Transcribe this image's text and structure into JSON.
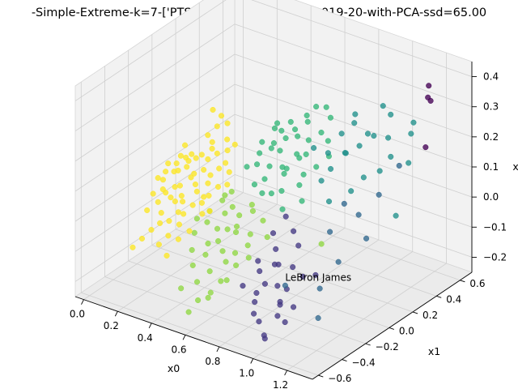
{
  "chart_data": {
    "type": "scatter",
    "title": "-Simple-Extreme-k=7-['PTS', 'AST', 'REB', 'BLK']-2019-20-with-PCA-ssd=65.00",
    "xlabel": "x0",
    "ylabel": "x1",
    "zlabel": "x2",
    "x_ticks": [
      "0.0",
      "0.2",
      "0.4",
      "0.6",
      "0.8",
      "1.0",
      "1.2"
    ],
    "y_ticks": [
      "−0.6",
      "−0.4",
      "−0.2",
      "0.0",
      "0.2",
      "0.4",
      "0.6"
    ],
    "z_ticks": [
      "−0.2",
      "−0.1",
      "0.0",
      "0.1",
      "0.2",
      "0.3",
      "0.4"
    ],
    "xlim": [
      -0.05,
      1.35
    ],
    "ylim": [
      -0.65,
      0.7
    ],
    "zlim": [
      -0.25,
      0.45
    ],
    "grid": true,
    "annotation": {
      "text": "LeBron James",
      "x": 1.05,
      "y": -0.45,
      "z": -0.05
    },
    "colors": {
      "c0": "#440154",
      "c1": "#443983",
      "c2": "#31688e",
      "c3": "#21918c",
      "c4": "#35b779",
      "c5": "#90d743",
      "c6": "#fde725"
    },
    "clusters": [
      {
        "color": "#440154",
        "points": [
          [
            1.2,
            0.55,
            0.38
          ],
          [
            1.23,
            0.5,
            0.36
          ],
          [
            1.26,
            0.48,
            0.36
          ],
          [
            1.3,
            0.38,
            0.24
          ]
        ]
      },
      {
        "color": "#443983",
        "points": [
          [
            0.75,
            -0.1,
            -0.08
          ],
          [
            0.78,
            -0.12,
            -0.12
          ],
          [
            0.8,
            -0.18,
            -0.1
          ],
          [
            0.83,
            -0.2,
            -0.16
          ],
          [
            0.85,
            -0.15,
            -0.18
          ],
          [
            0.72,
            -0.22,
            -0.2
          ],
          [
            0.88,
            -0.25,
            -0.2
          ],
          [
            0.9,
            -0.3,
            -0.22
          ],
          [
            0.92,
            -0.2,
            -0.08
          ],
          [
            0.95,
            -0.35,
            -0.15
          ],
          [
            0.7,
            -0.05,
            -0.05
          ],
          [
            0.86,
            -0.4,
            -0.22
          ],
          [
            0.98,
            -0.28,
            -0.18
          ],
          [
            1.0,
            -0.38,
            -0.2
          ],
          [
            0.76,
            -0.3,
            -0.24
          ],
          [
            0.82,
            -0.05,
            -0.02
          ],
          [
            0.68,
            -0.15,
            -0.12
          ],
          [
            0.93,
            -0.45,
            -0.25
          ],
          [
            0.8,
            -0.35,
            -0.18
          ],
          [
            1.02,
            -0.15,
            -0.1
          ],
          [
            0.87,
            -0.08,
            -0.05
          ],
          [
            0.74,
            0.0,
            0.0
          ],
          [
            0.96,
            -0.5,
            -0.22
          ],
          [
            0.91,
            -0.1,
            -0.14
          ],
          [
            0.78,
            -0.28,
            -0.1
          ],
          [
            0.84,
            -0.32,
            -0.12
          ],
          [
            0.66,
            -0.25,
            -0.18
          ]
        ]
      },
      {
        "color": "#31688e",
        "points": [
          [
            1.05,
            -0.45,
            -0.05
          ],
          [
            1.1,
            0.1,
            0.05
          ],
          [
            1.15,
            0.2,
            0.1
          ],
          [
            1.18,
            0.05,
            0.0
          ],
          [
            1.12,
            -0.1,
            -0.05
          ],
          [
            1.2,
            0.3,
            0.18
          ],
          [
            1.08,
            -0.2,
            -0.12
          ],
          [
            1.0,
            0.0,
            0.0
          ],
          [
            1.14,
            -0.3,
            -0.18
          ],
          [
            0.98,
            0.15,
            0.05
          ]
        ]
      },
      {
        "color": "#21918c",
        "points": [
          [
            0.95,
            0.2,
            0.2
          ],
          [
            1.0,
            0.25,
            0.22
          ],
          [
            1.05,
            0.3,
            0.25
          ],
          [
            1.1,
            0.35,
            0.24
          ],
          [
            1.15,
            0.3,
            0.2
          ],
          [
            0.9,
            0.15,
            0.15
          ],
          [
            0.92,
            0.25,
            0.18
          ],
          [
            0.98,
            0.35,
            0.23
          ],
          [
            1.2,
            0.4,
            0.26
          ],
          [
            1.25,
            0.2,
            0.05
          ],
          [
            0.88,
            0.1,
            0.12
          ],
          [
            1.02,
            0.15,
            0.1
          ],
          [
            0.85,
            0.2,
            0.18
          ],
          [
            1.08,
            0.4,
            0.3
          ],
          [
            0.96,
            0.05,
            0.08
          ],
          [
            1.12,
            0.25,
            0.16
          ],
          [
            0.86,
            0.3,
            0.22
          ],
          [
            1.18,
            0.45,
            0.28
          ],
          [
            0.94,
            0.3,
            0.3
          ],
          [
            1.06,
            0.2,
            0.14
          ],
          [
            0.8,
            0.15,
            0.2
          ],
          [
            1.22,
            0.35,
            0.18
          ],
          [
            0.9,
            0.35,
            0.25
          ],
          [
            1.0,
            0.45,
            0.3
          ]
        ]
      },
      {
        "color": "#35b779",
        "points": [
          [
            0.55,
            0.15,
            0.15
          ],
          [
            0.6,
            0.2,
            0.18
          ],
          [
            0.65,
            0.1,
            0.12
          ],
          [
            0.7,
            0.15,
            0.16
          ],
          [
            0.58,
            0.05,
            0.08
          ],
          [
            0.62,
            0.25,
            0.2
          ],
          [
            0.68,
            0.05,
            0.06
          ],
          [
            0.72,
            0.2,
            0.15
          ],
          [
            0.5,
            0.1,
            0.1
          ],
          [
            0.75,
            0.1,
            0.08
          ],
          [
            0.53,
            0.2,
            0.15
          ],
          [
            0.66,
            0.3,
            0.22
          ],
          [
            0.6,
            0.0,
            0.05
          ],
          [
            0.78,
            0.2,
            0.12
          ],
          [
            0.48,
            0.15,
            0.12
          ],
          [
            0.7,
            0.25,
            0.18
          ],
          [
            0.56,
            0.3,
            0.2
          ],
          [
            0.64,
            0.15,
            0.1
          ],
          [
            0.74,
            0.3,
            0.2
          ],
          [
            0.52,
            0.05,
            0.05
          ],
          [
            0.8,
            0.05,
            0.05
          ],
          [
            0.46,
            0.2,
            0.14
          ],
          [
            0.62,
            0.35,
            0.22
          ],
          [
            0.68,
            0.2,
            0.13
          ],
          [
            0.58,
            0.18,
            0.14
          ],
          [
            0.76,
            0.35,
            0.24
          ],
          [
            0.54,
            0.25,
            0.18
          ],
          [
            0.72,
            0.0,
            0.02
          ],
          [
            0.44,
            0.1,
            0.08
          ],
          [
            0.66,
            0.1,
            0.1
          ],
          [
            0.6,
            0.3,
            0.16
          ],
          [
            0.82,
            0.25,
            0.15
          ],
          [
            0.5,
            0.25,
            0.18
          ],
          [
            0.7,
            0.4,
            0.25
          ],
          [
            0.56,
            0.12,
            0.1
          ],
          [
            0.64,
            0.4,
            0.24
          ],
          [
            0.78,
            0.3,
            0.18
          ],
          [
            0.48,
            0.3,
            0.18
          ],
          [
            0.62,
            0.05,
            0.04
          ],
          [
            0.74,
            0.15,
            0.1
          ]
        ]
      },
      {
        "color": "#90d743",
        "points": [
          [
            0.4,
            -0.05,
            0.0
          ],
          [
            0.45,
            -0.1,
            -0.02
          ],
          [
            0.5,
            -0.05,
            -0.03
          ],
          [
            0.55,
            -0.15,
            -0.05
          ],
          [
            0.42,
            0.0,
            0.02
          ],
          [
            0.48,
            -0.2,
            -0.08
          ],
          [
            0.52,
            -0.1,
            -0.05
          ],
          [
            0.58,
            -0.2,
            -0.1
          ],
          [
            0.38,
            -0.15,
            -0.05
          ],
          [
            0.6,
            -0.1,
            -0.06
          ],
          [
            0.44,
            -0.25,
            -0.12
          ],
          [
            0.5,
            -0.3,
            -0.15
          ],
          [
            0.56,
            -0.25,
            -0.12
          ],
          [
            0.62,
            -0.15,
            -0.08
          ],
          [
            0.36,
            -0.1,
            -0.03
          ],
          [
            0.46,
            -0.35,
            -0.18
          ],
          [
            0.54,
            -0.35,
            -0.2
          ],
          [
            0.6,
            -0.3,
            -0.16
          ],
          [
            0.4,
            -0.3,
            -0.15
          ],
          [
            0.64,
            -0.05,
            -0.02
          ],
          [
            0.34,
            -0.2,
            -0.08
          ],
          [
            0.5,
            -0.4,
            -0.22
          ],
          [
            0.58,
            -0.05,
            0.0
          ],
          [
            0.42,
            -0.2,
            -0.1
          ],
          [
            0.66,
            -0.2,
            -0.1
          ],
          [
            0.38,
            0.0,
            0.0
          ],
          [
            0.52,
            -0.22,
            -0.1
          ],
          [
            0.46,
            -0.05,
            -0.01
          ],
          [
            0.56,
            -0.4,
            -0.2
          ],
          [
            0.44,
            -0.15,
            -0.06
          ],
          [
            0.62,
            -0.25,
            -0.12
          ],
          [
            0.48,
            -0.45,
            -0.25
          ],
          [
            0.7,
            -0.1,
            -0.05
          ],
          [
            0.36,
            -0.25,
            -0.12
          ],
          [
            0.54,
            0.0,
            0.0
          ],
          [
            0.4,
            -0.4,
            -0.2
          ],
          [
            0.6,
            -0.35,
            -0.15
          ],
          [
            0.5,
            -0.15,
            -0.05
          ],
          [
            0.32,
            -0.15,
            -0.05
          ],
          [
            0.95,
            0.0,
            -0.05
          ]
        ]
      },
      {
        "color": "#fde725",
        "points": [
          [
            0.05,
            -0.05,
            0.0
          ],
          [
            0.08,
            0.0,
            0.02
          ],
          [
            0.1,
            -0.1,
            -0.02
          ],
          [
            0.12,
            0.05,
            0.03
          ],
          [
            0.15,
            -0.05,
            0.0
          ],
          [
            0.18,
            0.0,
            0.02
          ],
          [
            0.2,
            -0.1,
            -0.03
          ],
          [
            0.22,
            0.05,
            0.04
          ],
          [
            0.25,
            -0.05,
            0.0
          ],
          [
            0.06,
            0.05,
            0.03
          ],
          [
            0.09,
            -0.15,
            -0.04
          ],
          [
            0.14,
            0.1,
            0.05
          ],
          [
            0.17,
            -0.12,
            -0.03
          ],
          [
            0.21,
            0.1,
            0.06
          ],
          [
            0.24,
            -0.15,
            -0.05
          ],
          [
            0.28,
            0.0,
            0.02
          ],
          [
            0.3,
            -0.08,
            -0.02
          ],
          [
            0.03,
            0.0,
            0.01
          ],
          [
            0.07,
            -0.08,
            -0.02
          ],
          [
            0.11,
            0.08,
            0.04
          ],
          [
            0.13,
            -0.18,
            -0.06
          ],
          [
            0.16,
            0.12,
            0.06
          ],
          [
            0.19,
            -0.2,
            -0.07
          ],
          [
            0.23,
            0.15,
            0.07
          ],
          [
            0.26,
            -0.1,
            -0.03
          ],
          [
            0.29,
            0.08,
            0.05
          ],
          [
            0.32,
            -0.05,
            0.0
          ],
          [
            0.04,
            -0.12,
            -0.03
          ],
          [
            0.1,
            0.12,
            0.05
          ],
          [
            0.15,
            -0.22,
            -0.08
          ],
          [
            0.2,
            0.15,
            0.08
          ],
          [
            0.25,
            -0.2,
            -0.07
          ],
          [
            0.3,
            0.12,
            0.06
          ],
          [
            0.34,
            0.0,
            0.02
          ],
          [
            0.08,
            0.1,
            0.04
          ],
          [
            0.12,
            -0.25,
            -0.1
          ],
          [
            0.18,
            0.18,
            0.09
          ],
          [
            0.22,
            -0.25,
            -0.1
          ],
          [
            0.27,
            0.18,
            0.08
          ],
          [
            0.33,
            -0.12,
            -0.04
          ],
          [
            0.02,
            -0.05,
            0.0
          ],
          [
            0.06,
            -0.2,
            -0.06
          ],
          [
            0.14,
            0.2,
            0.1
          ],
          [
            0.2,
            -0.3,
            -0.12
          ],
          [
            0.28,
            -0.25,
            -0.1
          ],
          [
            0.35,
            0.08,
            0.05
          ],
          [
            0.1,
            -0.3,
            -0.12
          ],
          [
            0.16,
            0.25,
            0.12
          ],
          [
            0.24,
            0.22,
            0.1
          ],
          [
            0.31,
            -0.2,
            -0.08
          ],
          [
            0.05,
            0.1,
            0.04
          ],
          [
            0.12,
            -0.05,
            -0.01
          ],
          [
            0.18,
            -0.08,
            -0.02
          ],
          [
            0.22,
            -0.02,
            0.01
          ],
          [
            0.26,
            0.05,
            0.03
          ],
          [
            0.09,
            0.02,
            0.02
          ],
          [
            0.13,
            -0.1,
            -0.03
          ],
          [
            0.17,
            0.04,
            0.02
          ],
          [
            0.21,
            -0.15,
            -0.05
          ],
          [
            0.29,
            -0.05,
            -0.01
          ],
          [
            0.1,
            0.3,
            0.15
          ],
          [
            0.15,
            0.3,
            0.14
          ],
          [
            0.2,
            0.28,
            0.13
          ],
          [
            0.08,
            -0.35,
            -0.14
          ],
          [
            0.26,
            -0.32,
            -0.14
          ],
          [
            0.36,
            -0.1,
            -0.03
          ],
          [
            0.38,
            0.02,
            0.03
          ],
          [
            0.01,
            0.05,
            0.02
          ],
          [
            0.04,
            0.15,
            0.06
          ],
          [
            0.3,
            0.2,
            0.1
          ]
        ]
      }
    ]
  }
}
